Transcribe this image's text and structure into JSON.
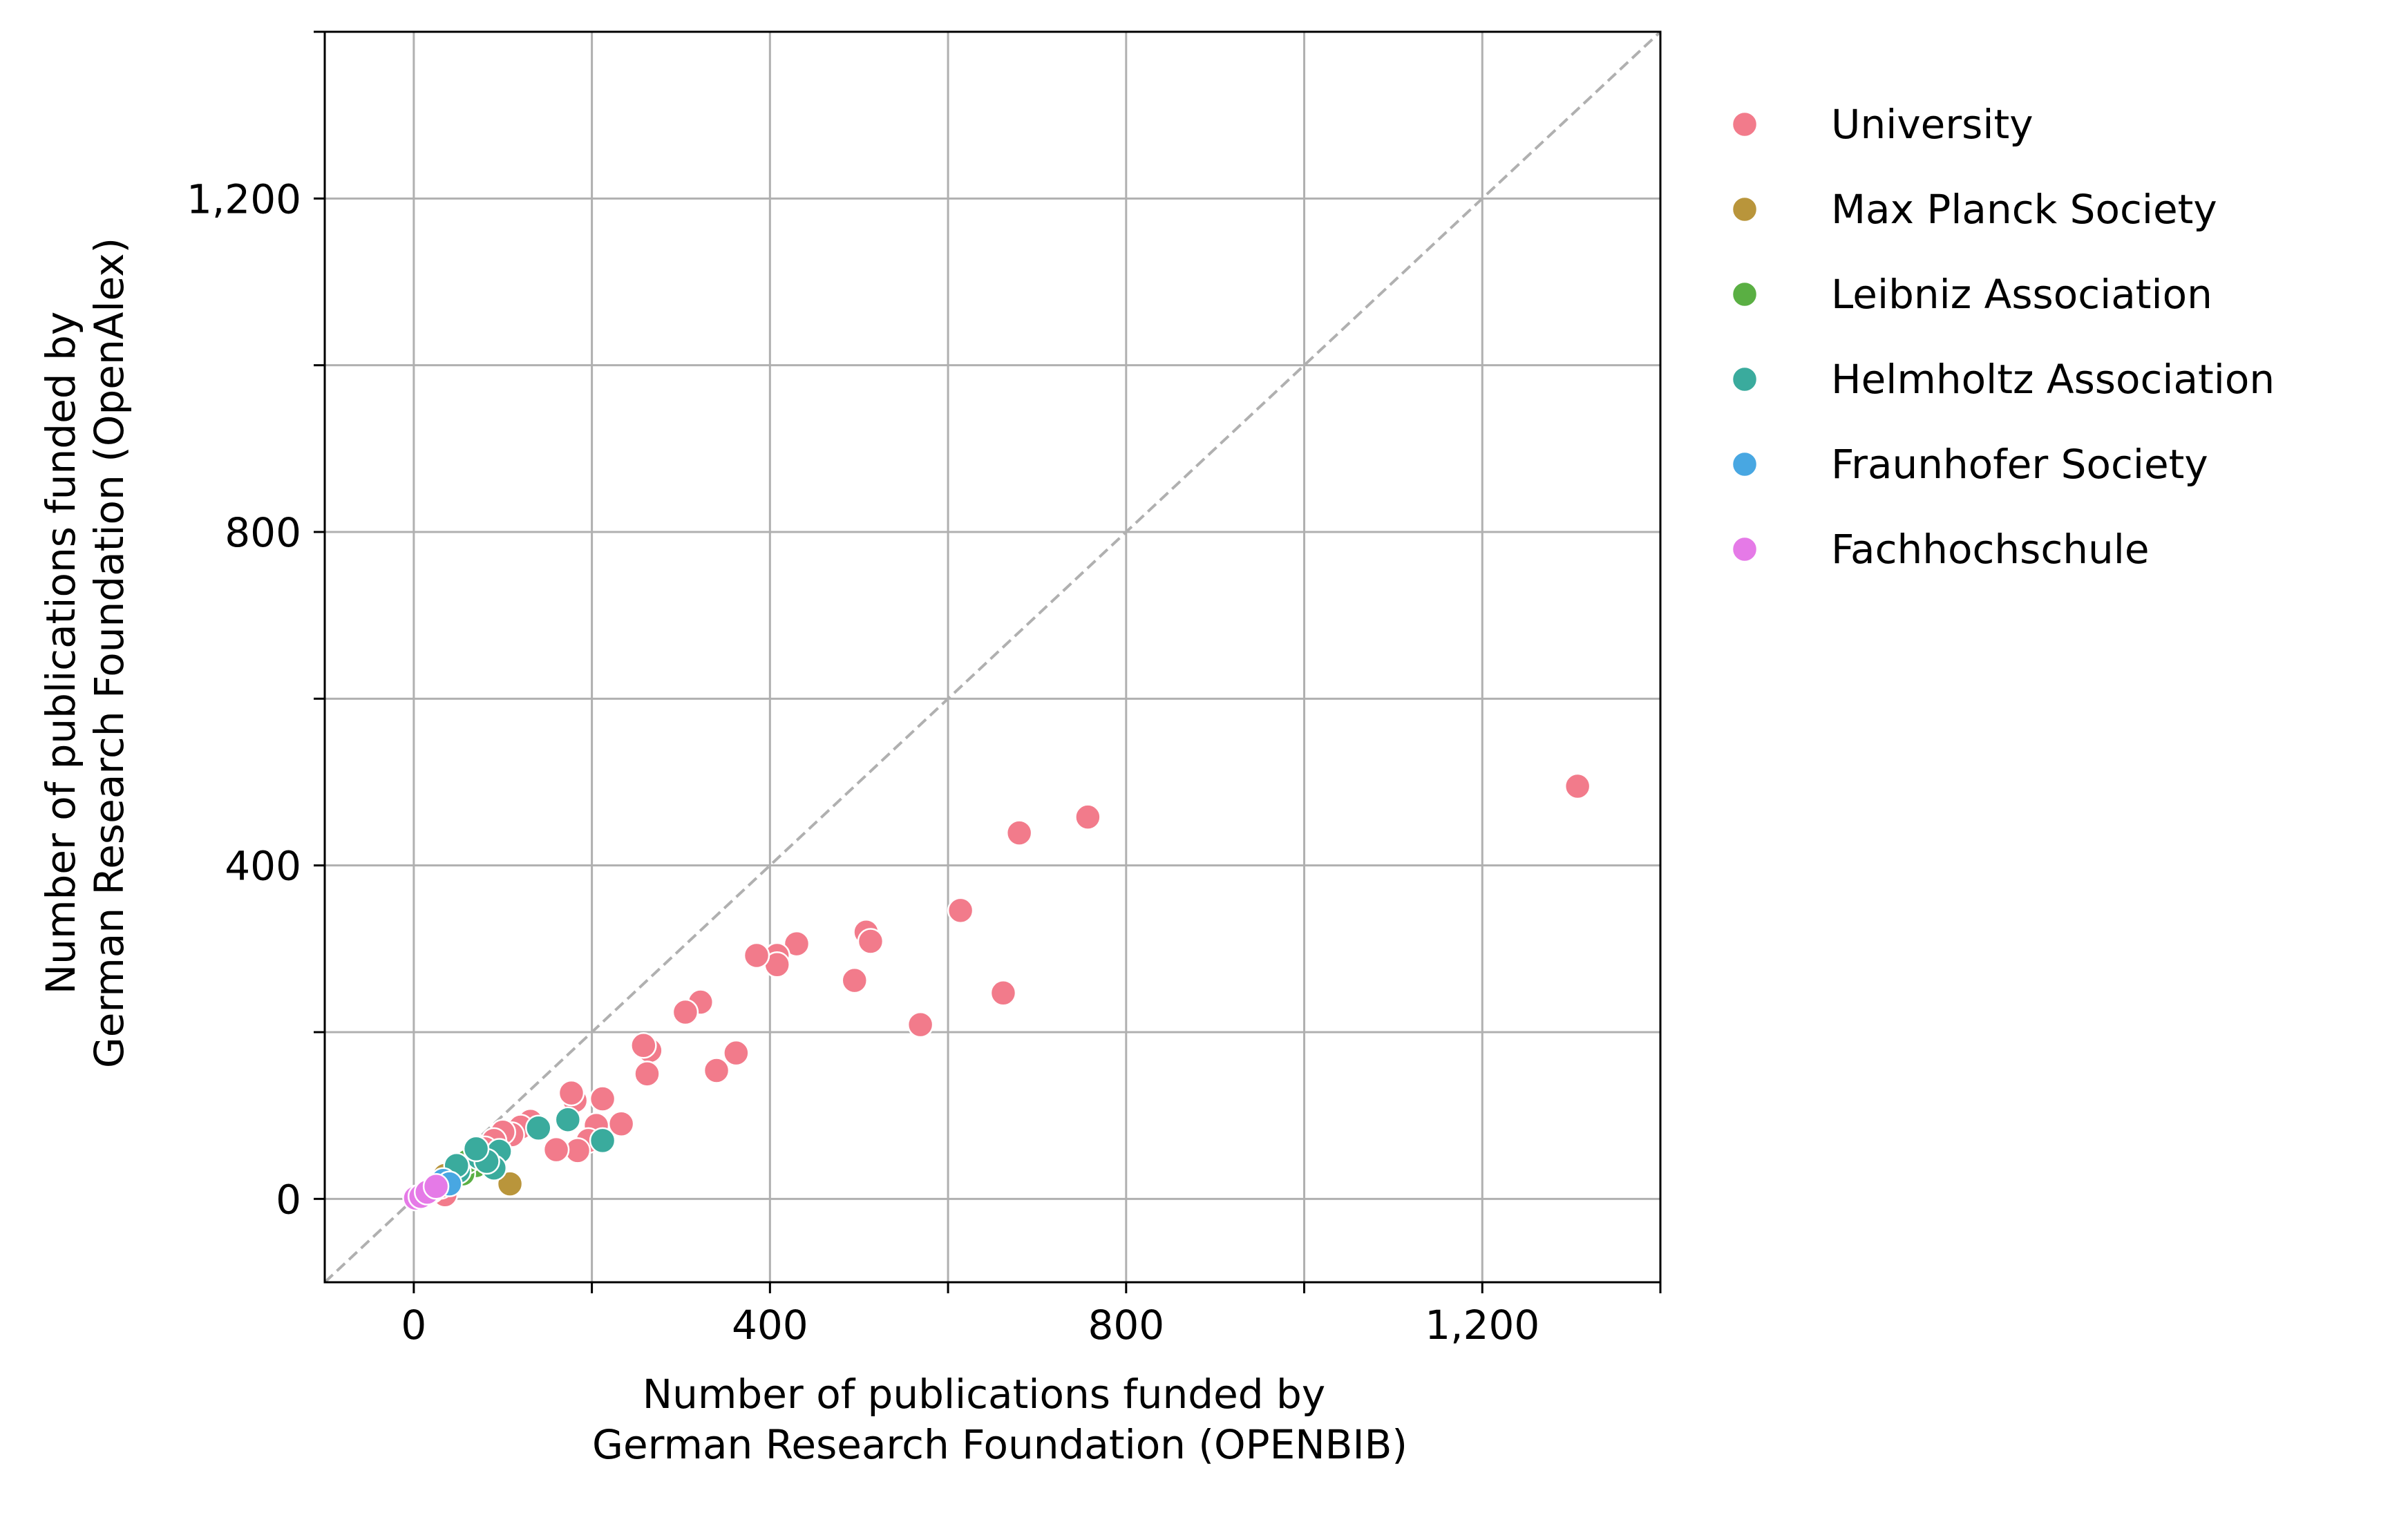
{
  "chart_data": {
    "type": "scatter",
    "xlabel": [
      "Number of publications funded by",
      "German Research Foundation (OPENBIB)"
    ],
    "ylabel": [
      "Number of publications funded by",
      "German Research Foundation (OpenAlex)"
    ],
    "xlim": [
      -100,
      1400
    ],
    "ylim": [
      -100,
      1400
    ],
    "xticks": [
      0,
      400,
      800,
      1200
    ],
    "xtick_labels": [
      "0",
      "400",
      "800",
      "1,200"
    ],
    "yticks": [
      0,
      400,
      800,
      1200
    ],
    "ytick_labels": [
      "0",
      "400",
      "800",
      "1,200"
    ],
    "minor_ticks": [
      200,
      600,
      1000,
      1400
    ],
    "grid": true,
    "reference_line": {
      "style": "dashed",
      "color": "#b0b0b0",
      "x": [
        -100,
        1400
      ],
      "y": [
        -100,
        1400
      ]
    },
    "legend_position": "outside-right",
    "series": [
      {
        "name": "University",
        "color": "#f27b8b",
        "points": [
          [
            1307,
            495
          ],
          [
            757,
            458
          ],
          [
            680,
            439
          ],
          [
            614,
            346
          ],
          [
            662,
            247
          ],
          [
            569,
            209
          ],
          [
            508,
            320
          ],
          [
            513,
            309
          ],
          [
            495,
            262
          ],
          [
            430,
            306
          ],
          [
            408,
            292
          ],
          [
            408,
            281
          ],
          [
            385,
            292
          ],
          [
            362,
            175
          ],
          [
            340,
            154
          ],
          [
            322,
            236
          ],
          [
            305,
            224
          ],
          [
            265,
            178
          ],
          [
            258,
            184
          ],
          [
            262,
            150
          ],
          [
            233,
            90
          ],
          [
            212,
            120
          ],
          [
            205,
            88
          ],
          [
            196,
            70
          ],
          [
            184,
            58
          ],
          [
            181,
            118
          ],
          [
            177,
            127
          ],
          [
            160,
            59
          ],
          [
            131,
            93
          ],
          [
            120,
            86
          ],
          [
            110,
            77
          ],
          [
            100,
            80
          ],
          [
            90,
            70
          ],
          [
            80,
            60
          ],
          [
            70,
            52
          ],
          [
            60,
            45
          ],
          [
            52,
            38
          ],
          [
            45,
            28
          ],
          [
            38,
            22
          ],
          [
            35,
            5
          ],
          [
            30,
            15
          ],
          [
            20,
            10
          ]
        ]
      },
      {
        "name": "Max Planck Society",
        "color": "#b9953b",
        "points": [
          [
            108,
            18
          ],
          [
            42,
            30
          ],
          [
            35,
            28
          ]
        ]
      },
      {
        "name": "Leibniz Association",
        "color": "#5aaf43",
        "points": [
          [
            70,
            40
          ],
          [
            55,
            30
          ],
          [
            60,
            45
          ]
        ]
      },
      {
        "name": "Helmholtz Association",
        "color": "#3aab9d",
        "points": [
          [
            173,
            95
          ],
          [
            212,
            70
          ],
          [
            140,
            85
          ],
          [
            96,
            57
          ],
          [
            90,
            37
          ],
          [
            73,
            50
          ],
          [
            82,
            45
          ],
          [
            70,
            60
          ],
          [
            50,
            33
          ],
          [
            48,
            40
          ]
        ]
      },
      {
        "name": "Fraunhofer Society",
        "color": "#48a7e2",
        "points": [
          [
            33,
            22
          ],
          [
            40,
            18
          ]
        ]
      },
      {
        "name": "Fachhochschule",
        "color": "#e57ae7",
        "points": [
          [
            2,
            1
          ],
          [
            8,
            3
          ],
          [
            20,
            12
          ],
          [
            15,
            8
          ],
          [
            25,
            15
          ]
        ]
      }
    ]
  }
}
